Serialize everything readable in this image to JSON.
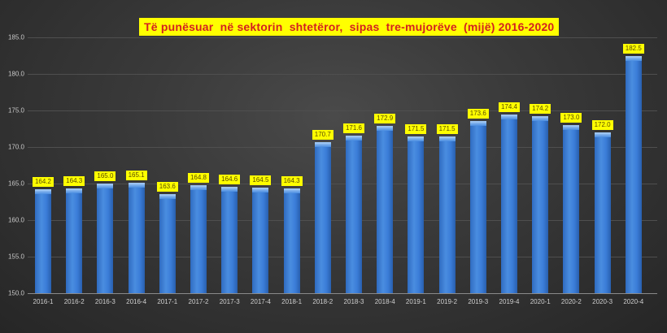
{
  "chart_data": {
    "type": "bar",
    "title": "Të punësuar  në sektorin  shtetëror,  sipas  tre-mujorëve  (mijë) 2016-2020",
    "xlabel": "",
    "ylabel": "",
    "ylim": [
      150,
      185
    ],
    "yticks": [
      "150.0",
      "155.0",
      "160.0",
      "165.0",
      "170.0",
      "175.0",
      "180.0",
      "185.0"
    ],
    "grid": true,
    "legend": null,
    "categories": [
      "2016-1",
      "2016-2",
      "2016-3",
      "2016-4",
      "2017-1",
      "2017-2",
      "2017-3",
      "2017-4",
      "2018-1",
      "2018-2",
      "2018-3",
      "2018-4",
      "2019-1",
      "2019-2",
      "2019-3",
      "2019-4",
      "2020-1",
      "2020-2",
      "2020-3",
      "2020-4"
    ],
    "values": [
      164.2,
      164.3,
      165.0,
      165.1,
      163.6,
      164.8,
      164.6,
      164.5,
      164.3,
      170.7,
      171.6,
      172.9,
      171.5,
      171.5,
      173.6,
      174.4,
      174.2,
      173.0,
      172.0,
      182.5
    ],
    "value_labels": [
      "164.2",
      "164.3",
      "165.0",
      "165.1",
      "163.6",
      "164.8",
      "164.6",
      "164.5",
      "164.3",
      "170.7",
      "171.6",
      "172.9",
      "171.5",
      "171.5",
      "173.6",
      "174.4",
      "174.2",
      "173.0",
      "172.0",
      "182.5"
    ],
    "colors": {
      "bar": "#3b7dd8",
      "label_bg": "#ffff00",
      "title_bg": "#ffff00",
      "title_text": "#d42020"
    }
  }
}
